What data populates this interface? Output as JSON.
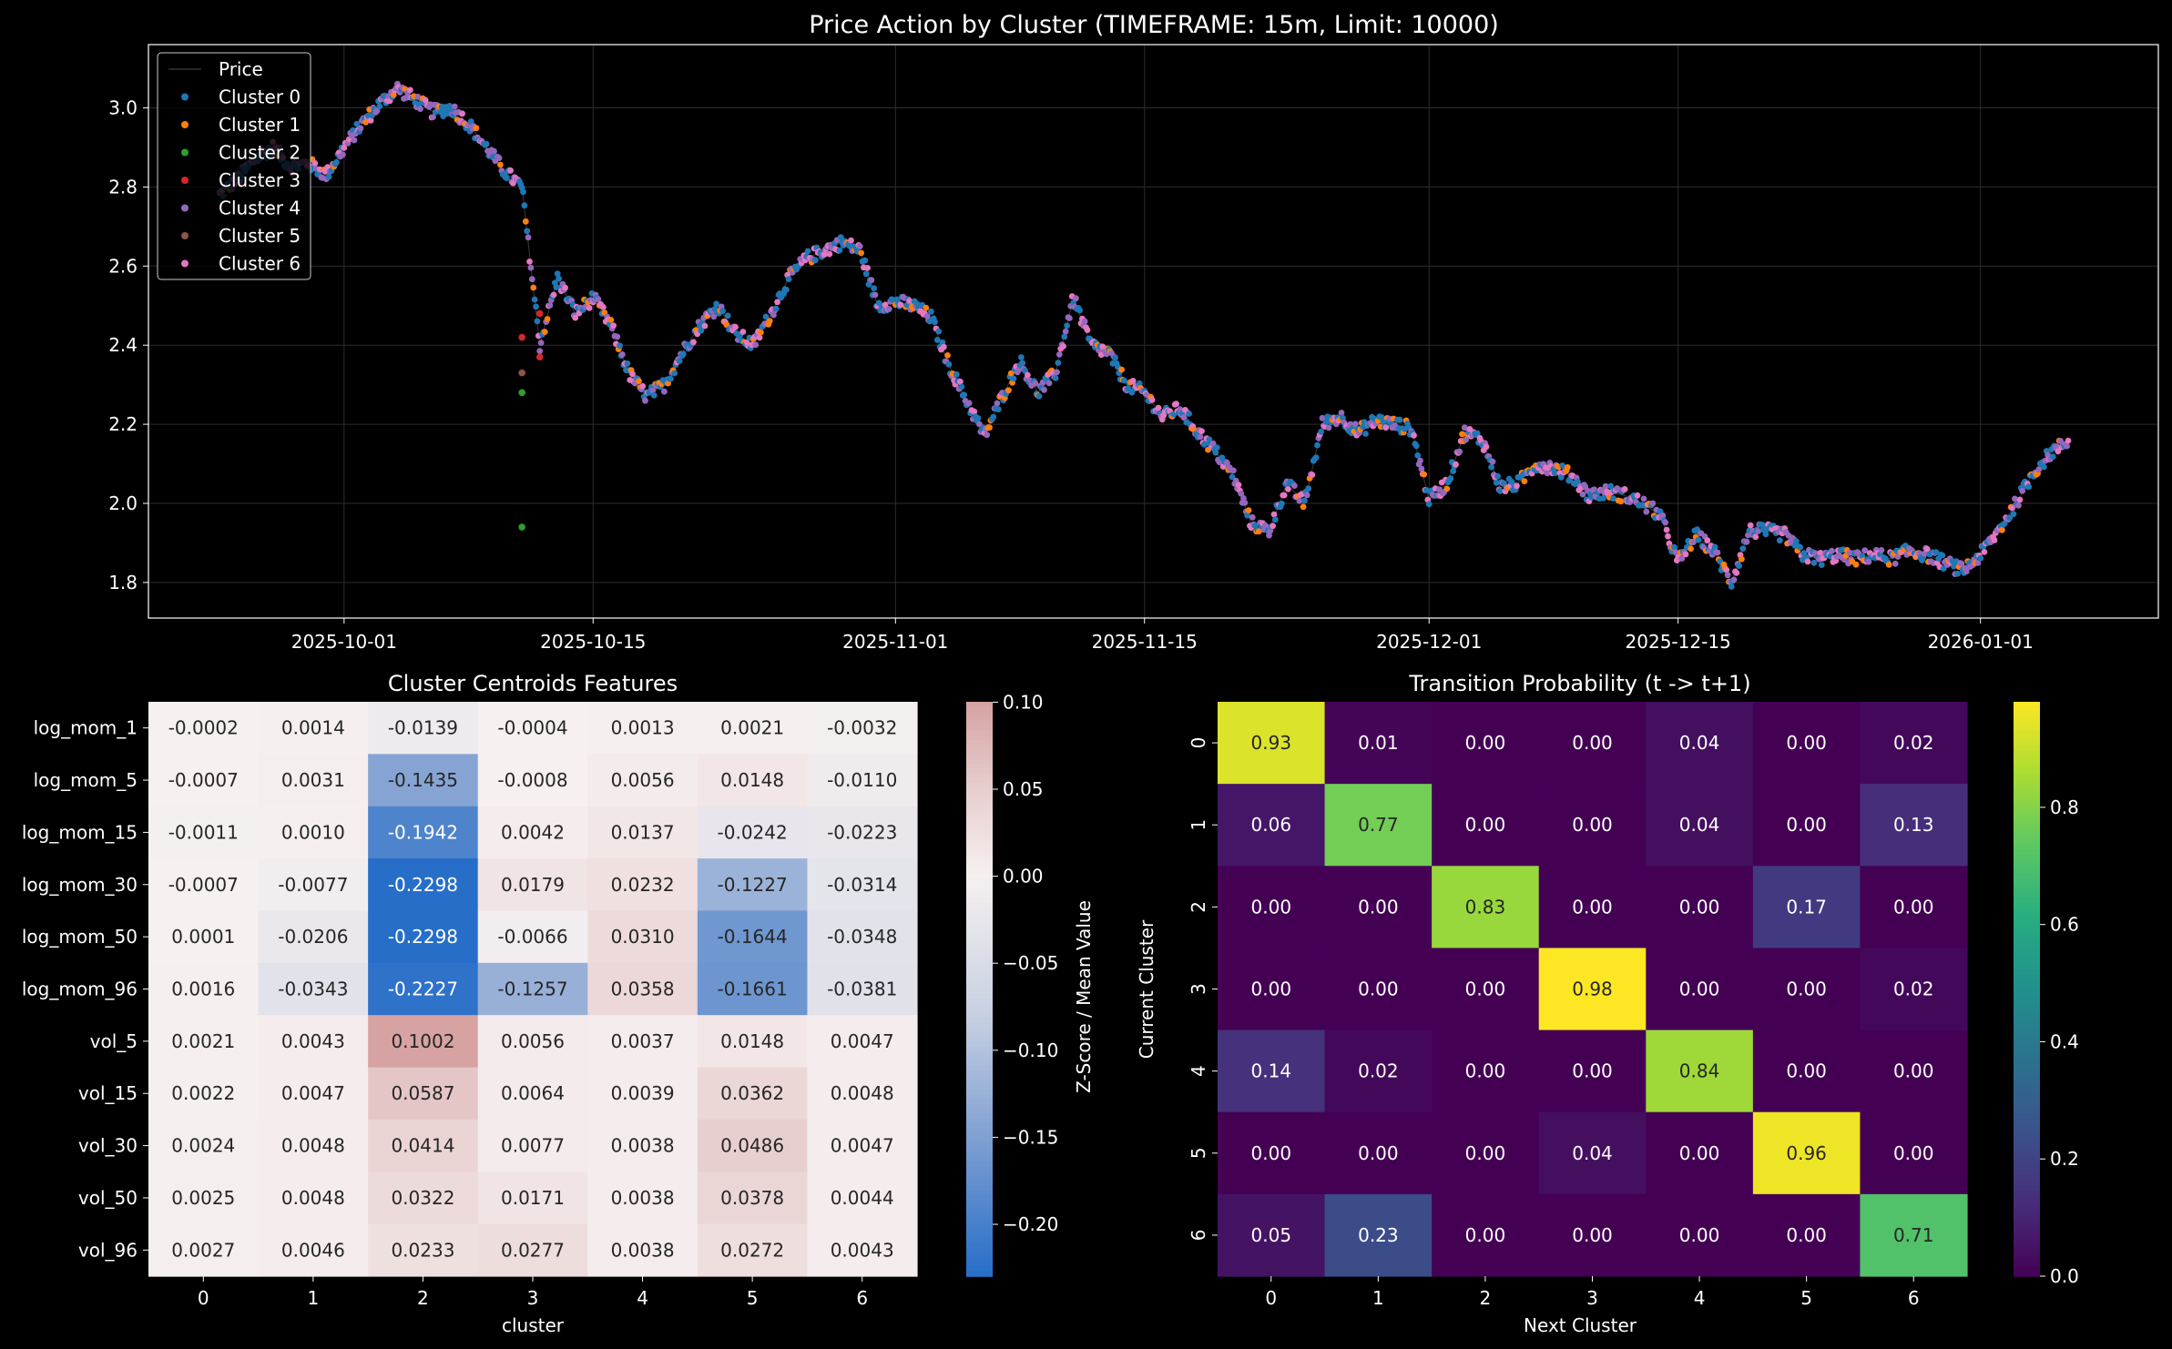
{
  "chart_data": [
    {
      "type": "scatter",
      "title": "Price Action by Cluster (TIMEFRAME: 15m, Limit: 10000)",
      "xlabel": "",
      "ylabel": "",
      "x_ticks": [
        "2025-10-01",
        "2025-10-15",
        "2025-11-01",
        "2025-11-15",
        "2025-12-01",
        "2025-12-15",
        "2026-01-01"
      ],
      "y_ticks": [
        "1.8",
        "2.0",
        "2.2",
        "2.4",
        "2.6",
        "2.8",
        "3.0"
      ],
      "x_range": [
        "2025-09-20",
        "2026-01-11"
      ],
      "ylim": [
        1.71,
        3.16
      ],
      "grid": true,
      "legend_position": "top-left",
      "legend": [
        {
          "label": "Price",
          "kind": "line",
          "color": "#333333"
        },
        {
          "label": "Cluster 0",
          "kind": "marker",
          "color": "#1f77b4"
        },
        {
          "label": "Cluster 1",
          "kind": "marker",
          "color": "#ff7f0e"
        },
        {
          "label": "Cluster 2",
          "kind": "marker",
          "color": "#2ca02c"
        },
        {
          "label": "Cluster 3",
          "kind": "marker",
          "color": "#d62728"
        },
        {
          "label": "Cluster 4",
          "kind": "marker",
          "color": "#9467bd"
        },
        {
          "label": "Cluster 5",
          "kind": "marker",
          "color": "#8c564b"
        },
        {
          "label": "Cluster 6",
          "kind": "marker",
          "color": "#e377c2"
        }
      ],
      "price_path": [
        [
          "2025-09-24",
          2.78
        ],
        [
          "2025-09-25",
          2.82
        ],
        [
          "2025-09-26",
          2.87
        ],
        [
          "2025-09-27",
          2.9
        ],
        [
          "2025-09-28",
          2.85
        ],
        [
          "2025-09-29",
          2.86
        ],
        [
          "2025-09-30",
          2.83
        ],
        [
          "2025-10-01",
          2.9
        ],
        [
          "2025-10-02",
          2.96
        ],
        [
          "2025-10-03",
          3.01
        ],
        [
          "2025-10-04",
          3.05
        ],
        [
          "2025-10-05",
          3.02
        ],
        [
          "2025-10-06",
          2.99
        ],
        [
          "2025-10-07",
          3.0
        ],
        [
          "2025-10-08",
          2.96
        ],
        [
          "2025-10-09",
          2.9
        ],
        [
          "2025-10-10",
          2.84
        ],
        [
          "2025-10-11",
          2.8
        ],
        [
          "2025-10-12",
          2.4
        ],
        [
          "2025-10-13",
          2.57
        ],
        [
          "2025-10-14",
          2.48
        ],
        [
          "2025-10-15",
          2.52
        ],
        [
          "2025-10-16",
          2.45
        ],
        [
          "2025-10-17",
          2.33
        ],
        [
          "2025-10-18",
          2.27
        ],
        [
          "2025-10-19",
          2.3
        ],
        [
          "2025-10-20",
          2.38
        ],
        [
          "2025-10-21",
          2.45
        ],
        [
          "2025-10-22",
          2.5
        ],
        [
          "2025-10-23",
          2.43
        ],
        [
          "2025-10-24",
          2.4
        ],
        [
          "2025-10-25",
          2.48
        ],
        [
          "2025-10-26",
          2.57
        ],
        [
          "2025-10-27",
          2.62
        ],
        [
          "2025-10-28",
          2.64
        ],
        [
          "2025-10-29",
          2.66
        ],
        [
          "2025-10-30",
          2.64
        ],
        [
          "2025-10-31",
          2.5
        ],
        [
          "2025-11-01",
          2.51
        ],
        [
          "2025-11-02",
          2.5
        ],
        [
          "2025-11-03",
          2.47
        ],
        [
          "2025-11-04",
          2.35
        ],
        [
          "2025-11-05",
          2.26
        ],
        [
          "2025-11-06",
          2.17
        ],
        [
          "2025-11-07",
          2.27
        ],
        [
          "2025-11-08",
          2.36
        ],
        [
          "2025-11-09",
          2.28
        ],
        [
          "2025-11-10",
          2.33
        ],
        [
          "2025-11-11",
          2.52
        ],
        [
          "2025-11-12",
          2.4
        ],
        [
          "2025-11-13",
          2.38
        ],
        [
          "2025-11-14",
          2.3
        ],
        [
          "2025-11-15",
          2.28
        ],
        [
          "2025-11-16",
          2.22
        ],
        [
          "2025-11-17",
          2.24
        ],
        [
          "2025-11-18",
          2.18
        ],
        [
          "2025-11-19",
          2.13
        ],
        [
          "2025-11-20",
          2.07
        ],
        [
          "2025-11-21",
          1.95
        ],
        [
          "2025-11-22",
          1.93
        ],
        [
          "2025-11-23",
          2.05
        ],
        [
          "2025-11-24",
          2.0
        ],
        [
          "2025-11-25",
          2.2
        ],
        [
          "2025-11-26",
          2.22
        ],
        [
          "2025-11-27",
          2.18
        ],
        [
          "2025-11-28",
          2.21
        ],
        [
          "2025-11-29",
          2.2
        ],
        [
          "2025-11-30",
          2.19
        ],
        [
          "2025-12-01",
          2.01
        ],
        [
          "2025-12-02",
          2.05
        ],
        [
          "2025-12-03",
          2.18
        ],
        [
          "2025-12-04",
          2.16
        ],
        [
          "2025-12-05",
          2.04
        ],
        [
          "2025-12-06",
          2.05
        ],
        [
          "2025-12-07",
          2.1
        ],
        [
          "2025-12-08",
          2.09
        ],
        [
          "2025-12-09",
          2.07
        ],
        [
          "2025-12-10",
          2.02
        ],
        [
          "2025-12-11",
          2.03
        ],
        [
          "2025-12-12",
          2.02
        ],
        [
          "2025-12-13",
          2.0
        ],
        [
          "2025-12-14",
          1.97
        ],
        [
          "2025-12-15",
          1.85
        ],
        [
          "2025-12-16",
          1.92
        ],
        [
          "2025-12-17",
          1.88
        ],
        [
          "2025-12-18",
          1.8
        ],
        [
          "2025-12-19",
          1.93
        ],
        [
          "2025-12-20",
          1.93
        ],
        [
          "2025-12-21",
          1.92
        ],
        [
          "2025-12-22",
          1.87
        ],
        [
          "2025-12-23",
          1.86
        ],
        [
          "2025-12-24",
          1.87
        ],
        [
          "2025-12-25",
          1.86
        ],
        [
          "2025-12-26",
          1.87
        ],
        [
          "2025-12-27",
          1.86
        ],
        [
          "2025-12-28",
          1.88
        ],
        [
          "2025-12-29",
          1.87
        ],
        [
          "2025-12-30",
          1.85
        ],
        [
          "2025-12-31",
          1.83
        ],
        [
          "2026-01-01",
          1.87
        ],
        [
          "2026-01-02",
          1.93
        ],
        [
          "2026-01-03",
          2.0
        ],
        [
          "2026-01-04",
          2.08
        ],
        [
          "2026-01-05",
          2.13
        ],
        [
          "2026-01-06",
          2.16
        ]
      ],
      "notable_points": [
        {
          "x": "2025-10-11",
          "y": 1.94,
          "cluster": 2
        },
        {
          "x": "2025-10-11",
          "y": 2.28,
          "cluster": 2
        },
        {
          "x": "2025-10-11",
          "y": 2.33,
          "cluster": 5
        },
        {
          "x": "2025-10-11",
          "y": 2.42,
          "cluster": 3
        },
        {
          "x": "2025-10-12",
          "y": 2.48,
          "cluster": 3
        },
        {
          "x": "2025-10-12",
          "y": 2.37,
          "cluster": 3
        }
      ]
    },
    {
      "type": "heatmap",
      "title": "Cluster Centroids Features",
      "xlabel": "cluster",
      "ylabel": "",
      "colorbar_label": "Z-Score / Mean Value",
      "colormap": "vlag",
      "vmin": -0.2298,
      "vmax": 0.1002,
      "colorbar_ticks": [
        "0.10",
        "0.05",
        "0.00",
        "−0.05",
        "−0.10",
        "−0.15",
        "−0.20"
      ],
      "x_categories": [
        "0",
        "1",
        "2",
        "3",
        "4",
        "5",
        "6"
      ],
      "y_categories": [
        "log_mom_1",
        "log_mom_5",
        "log_mom_15",
        "log_mom_30",
        "log_mom_50",
        "log_mom_96",
        "vol_5",
        "vol_15",
        "vol_30",
        "vol_50",
        "vol_96"
      ],
      "values": [
        [
          -0.0002,
          0.0014,
          -0.0139,
          -0.0004,
          0.0013,
          0.0021,
          -0.0032
        ],
        [
          -0.0007,
          0.0031,
          -0.1435,
          -0.0008,
          0.0056,
          0.0148,
          -0.011
        ],
        [
          -0.0011,
          0.001,
          -0.1942,
          0.0042,
          0.0137,
          -0.0242,
          -0.0223
        ],
        [
          -0.0007,
          -0.0077,
          -0.2298,
          0.0179,
          0.0232,
          -0.1227,
          -0.0314
        ],
        [
          0.0001,
          -0.0206,
          -0.2298,
          -0.0066,
          0.031,
          -0.1644,
          -0.0348
        ],
        [
          0.0016,
          -0.0343,
          -0.2227,
          -0.1257,
          0.0358,
          -0.1661,
          -0.0381
        ],
        [
          0.0021,
          0.0043,
          0.1002,
          0.0056,
          0.0037,
          0.0148,
          0.0047
        ],
        [
          0.0022,
          0.0047,
          0.0587,
          0.0064,
          0.0039,
          0.0362,
          0.0048
        ],
        [
          0.0024,
          0.0048,
          0.0414,
          0.0077,
          0.0038,
          0.0486,
          0.0047
        ],
        [
          0.0025,
          0.0048,
          0.0322,
          0.0171,
          0.0038,
          0.0378,
          0.0044
        ],
        [
          0.0027,
          0.0046,
          0.0233,
          0.0277,
          0.0038,
          0.0272,
          0.0043
        ]
      ],
      "labels": [
        [
          "-0.0002",
          "0.0014",
          "-0.0139",
          "-0.0004",
          "0.0013",
          "0.0021",
          "-0.0032"
        ],
        [
          "-0.0007",
          "0.0031",
          "-0.1435",
          "-0.0008",
          "0.0056",
          "0.0148",
          "-0.0110"
        ],
        [
          "-0.0011",
          "0.0010",
          "-0.1942",
          "0.0042",
          "0.0137",
          "-0.0242",
          "-0.0223"
        ],
        [
          "-0.0007",
          "-0.0077",
          "-0.2298",
          "0.0179",
          "0.0232",
          "-0.1227",
          "-0.0314"
        ],
        [
          "0.0001",
          "-0.0206",
          "-0.2298",
          "-0.0066",
          "0.0310",
          "-0.1644",
          "-0.0348"
        ],
        [
          "0.0016",
          "-0.0343",
          "-0.2227",
          "-0.1257",
          "0.0358",
          "-0.1661",
          "-0.0381"
        ],
        [
          "0.0021",
          "0.0043",
          "0.1002",
          "0.0056",
          "0.0037",
          "0.0148",
          "0.0047"
        ],
        [
          "0.0022",
          "0.0047",
          "0.0587",
          "0.0064",
          "0.0039",
          "0.0362",
          "0.0048"
        ],
        [
          "0.0024",
          "0.0048",
          "0.0414",
          "0.0077",
          "0.0038",
          "0.0486",
          "0.0047"
        ],
        [
          "0.0025",
          "0.0048",
          "0.0322",
          "0.0171",
          "0.0038",
          "0.0378",
          "0.0044"
        ],
        [
          "0.0027",
          "0.0046",
          "0.0233",
          "0.0277",
          "0.0038",
          "0.0272",
          "0.0043"
        ]
      ]
    },
    {
      "type": "heatmap",
      "title": "Transition Probability (t -> t+1)",
      "xlabel": "Next Cluster",
      "ylabel": "Current Cluster",
      "colormap": "viridis",
      "vmin": 0.0,
      "vmax": 0.98,
      "colorbar_ticks": [
        "0.8",
        "0.6",
        "0.4",
        "0.2",
        "0.0"
      ],
      "x_categories": [
        "0",
        "1",
        "2",
        "3",
        "4",
        "5",
        "6"
      ],
      "y_categories": [
        "0",
        "1",
        "2",
        "3",
        "4",
        "5",
        "6"
      ],
      "values": [
        [
          0.93,
          0.01,
          0.0,
          0.0,
          0.04,
          0.0,
          0.02
        ],
        [
          0.06,
          0.77,
          0.0,
          0.0,
          0.04,
          0.0,
          0.13
        ],
        [
          0.0,
          0.0,
          0.83,
          0.0,
          0.0,
          0.17,
          0.0
        ],
        [
          0.0,
          0.0,
          0.0,
          0.98,
          0.0,
          0.0,
          0.02
        ],
        [
          0.14,
          0.02,
          0.0,
          0.0,
          0.84,
          0.0,
          0.0
        ],
        [
          0.0,
          0.0,
          0.0,
          0.04,
          0.0,
          0.96,
          0.0
        ],
        [
          0.05,
          0.23,
          0.0,
          0.0,
          0.0,
          0.0,
          0.71
        ]
      ],
      "labels": [
        [
          "0.93",
          "0.01",
          "0.00",
          "0.00",
          "0.04",
          "0.00",
          "0.02"
        ],
        [
          "0.06",
          "0.77",
          "0.00",
          "0.00",
          "0.04",
          "0.00",
          "0.13"
        ],
        [
          "0.00",
          "0.00",
          "0.83",
          "0.00",
          "0.00",
          "0.17",
          "0.00"
        ],
        [
          "0.00",
          "0.00",
          "0.00",
          "0.98",
          "0.00",
          "0.00",
          "0.02"
        ],
        [
          "0.14",
          "0.02",
          "0.00",
          "0.00",
          "0.84",
          "0.00",
          "0.00"
        ],
        [
          "0.00",
          "0.00",
          "0.00",
          "0.04",
          "0.00",
          "0.96",
          "0.00"
        ],
        [
          "0.05",
          "0.23",
          "0.00",
          "0.00",
          "0.00",
          "0.00",
          "0.71"
        ]
      ]
    }
  ]
}
